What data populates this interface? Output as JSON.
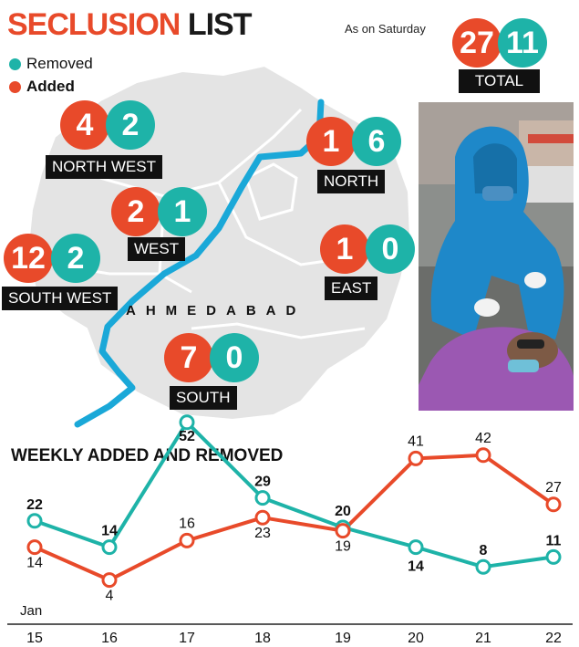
{
  "header": {
    "title_part1": "SECLUSION",
    "title_part2": "LIST",
    "as_of": "As on Saturday"
  },
  "legend": {
    "removed": "Removed",
    "added": "Added",
    "removed_color": "#1eb3a8",
    "added_color": "#e84a2a"
  },
  "total": {
    "added": "27",
    "removed": "11",
    "label": "TOTAL"
  },
  "zones": [
    {
      "name": "NORTH WEST",
      "added": "4",
      "removed": "2"
    },
    {
      "name": "NORTH",
      "added": "1",
      "removed": "6"
    },
    {
      "name": "WEST",
      "added": "2",
      "removed": "1"
    },
    {
      "name": "EAST",
      "added": "1",
      "removed": "0"
    },
    {
      "name": "SOUTH WEST",
      "added": "12",
      "removed": "2"
    },
    {
      "name": "SOUTH",
      "added": "7",
      "removed": "0"
    }
  ],
  "map": {
    "city": "AHMEDABAD"
  },
  "chart_data": {
    "type": "line",
    "title": "WEEKLY ADDED AND REMOVED",
    "x_prefix": "Jan",
    "x": [
      "15",
      "16",
      "17",
      "18",
      "19",
      "20",
      "21",
      "22"
    ],
    "series": [
      {
        "name": "Removed",
        "color": "#1eb3a8",
        "values": [
          22,
          14,
          52,
          29,
          20,
          14,
          8,
          11
        ]
      },
      {
        "name": "Added",
        "color": "#e84a2a",
        "values": [
          14,
          4,
          16,
          23,
          19,
          41,
          42,
          27
        ]
      }
    ],
    "grid": false,
    "legend": "top-left"
  }
}
